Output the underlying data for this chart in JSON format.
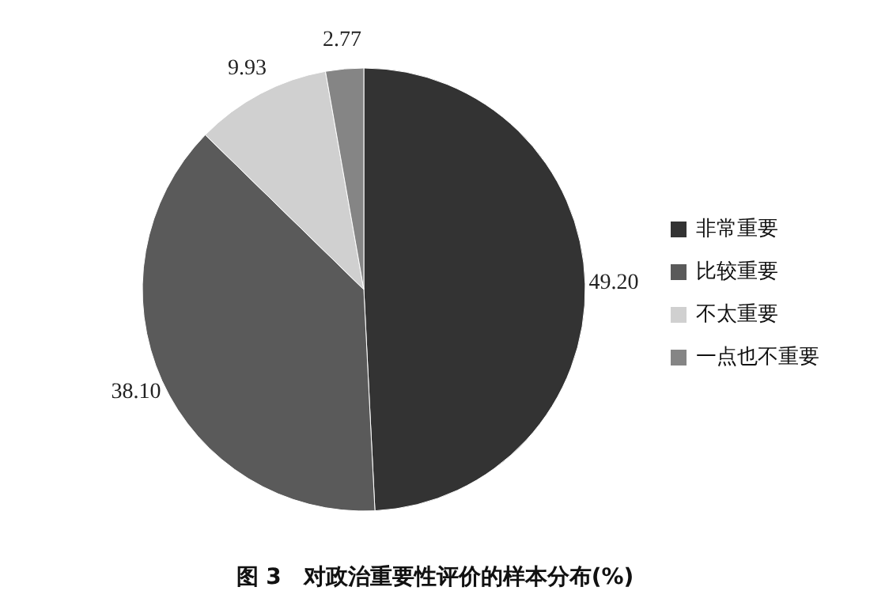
{
  "chart_data": {
    "type": "pie",
    "title": "图 3　对政治重要性评价的样本分布(%)",
    "categories": [
      "非常重要",
      "比较重要",
      "不太重要",
      "一点也不重要"
    ],
    "values": [
      49.2,
      38.1,
      9.93,
      2.77
    ],
    "value_labels": [
      "49.20",
      "38.10",
      "9.93",
      "2.77"
    ],
    "colors": [
      "#333333",
      "#5a5a5a",
      "#d0d0d0",
      "#858585"
    ],
    "legend": "right"
  }
}
